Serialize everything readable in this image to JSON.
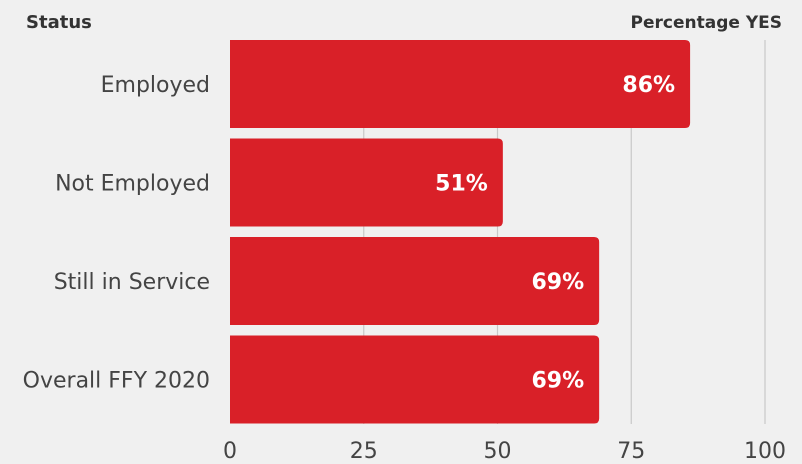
{
  "chart_data": {
    "type": "bar",
    "orientation": "horizontal",
    "category_header": "Status",
    "value_header": "Percentage YES",
    "categories": [
      "Employed",
      "Not Employed",
      "Still in Service",
      "Overall FFY 2020"
    ],
    "values": [
      86,
      51,
      69,
      69
    ],
    "value_labels": [
      "86%",
      "51%",
      "69%",
      "69%"
    ],
    "xlim": [
      0,
      100
    ],
    "xticks": [
      0,
      25,
      50,
      75,
      100
    ],
    "grid": true,
    "bar_color": "#d92028",
    "grid_color": "#c8c8c8",
    "background_color": "#f0f0f0"
  }
}
